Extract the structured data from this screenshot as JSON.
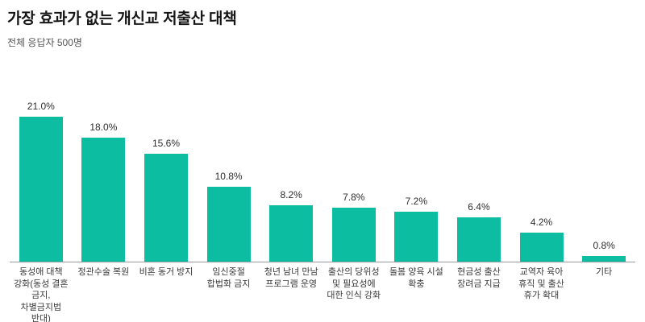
{
  "header": {
    "title": "가장 효과가 없는 개신교 저출산 대책",
    "subtitle": "전체 응답자 500명"
  },
  "colors": {
    "bar": "#0cbda2",
    "axis": "#9a9a9a",
    "title_text": "#161616",
    "subtitle_text": "#555555",
    "label_text": "#3a3a3a"
  },
  "chart_data": {
    "type": "bar",
    "title": "가장 효과가 없는 개신교 저출산 대책",
    "subtitle": "전체 응답자 500명",
    "categories": [
      "동성애 대책 강화(동성 결혼 금지, 차별금지법 반대)",
      "정관수술 복원",
      "비혼 동거 방지",
      "임신중절 합법화 금지",
      "청년 남녀 만남 프로그램 운영",
      "출산의 당위성 및 필요성에 대한 인식 강화",
      "돌봄 양육 시설 확충",
      "현금성 출산 장려금 지급",
      "교역자 육아 휴직 및 출산 휴가 확대",
      "기타"
    ],
    "values": [
      21.0,
      18.0,
      15.6,
      10.8,
      8.2,
      7.8,
      7.2,
      6.4,
      4.2,
      0.8
    ],
    "value_labels": [
      "21.0%",
      "18.0%",
      "15.6%",
      "10.8%",
      "8.2%",
      "7.8%",
      "7.2%",
      "6.4%",
      "4.2%",
      "0.8%"
    ],
    "xlabel": "",
    "ylabel": "",
    "ylim": [
      0,
      23
    ],
    "grid": false,
    "legend": "none",
    "bar_color": "#0cbda2"
  }
}
